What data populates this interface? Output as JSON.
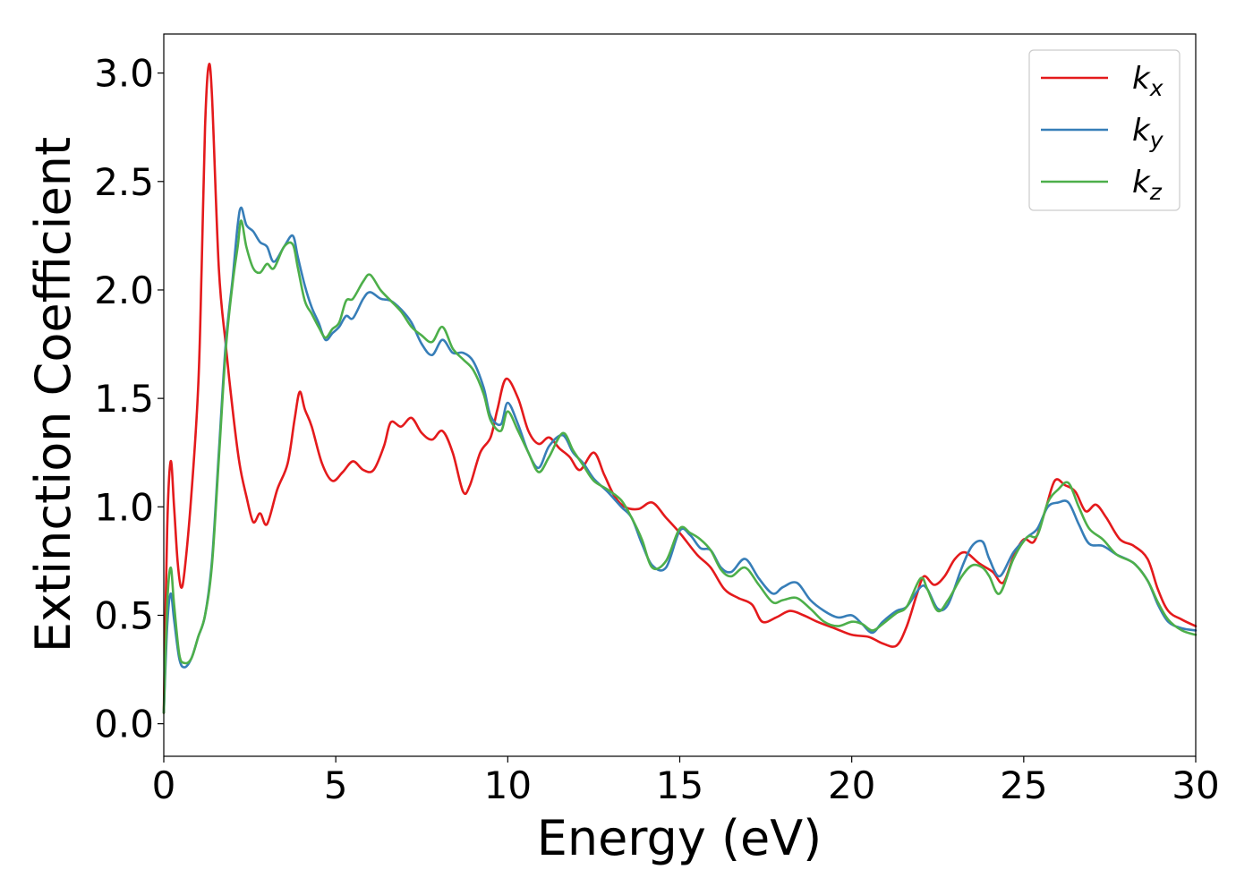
{
  "chart_data": {
    "type": "line",
    "xlabel": "Energy (eV)",
    "ylabel": "Extinction Coefficient",
    "xlim": [
      0,
      30
    ],
    "ylim": [
      -0.15,
      3.18
    ],
    "xticks": [
      "0",
      "5",
      "10",
      "15",
      "20",
      "25",
      "30"
    ],
    "yticks": [
      "0.0",
      "0.5",
      "1.0",
      "1.5",
      "2.0",
      "2.5",
      "3.0"
    ],
    "grid": false,
    "legend_position": "top-right",
    "series": [
      {
        "name": "k",
        "subscript": "x",
        "color": "#e41a1c",
        "points": [
          [
            0,
            0.05
          ],
          [
            0.1,
            0.9
          ],
          [
            0.2,
            1.21
          ],
          [
            0.3,
            1.0
          ],
          [
            0.4,
            0.75
          ],
          [
            0.5,
            0.63
          ],
          [
            0.6,
            0.7
          ],
          [
            0.8,
            1.05
          ],
          [
            1.0,
            1.55
          ],
          [
            1.1,
            2.1
          ],
          [
            1.2,
            2.75
          ],
          [
            1.3,
            3.03
          ],
          [
            1.4,
            2.9
          ],
          [
            1.6,
            2.1
          ],
          [
            1.8,
            1.75
          ],
          [
            2.0,
            1.45
          ],
          [
            2.2,
            1.2
          ],
          [
            2.4,
            1.05
          ],
          [
            2.6,
            0.93
          ],
          [
            2.8,
            0.97
          ],
          [
            3.0,
            0.92
          ],
          [
            3.3,
            1.08
          ],
          [
            3.6,
            1.2
          ],
          [
            3.8,
            1.4
          ],
          [
            3.95,
            1.53
          ],
          [
            4.1,
            1.45
          ],
          [
            4.3,
            1.37
          ],
          [
            4.6,
            1.2
          ],
          [
            4.9,
            1.12
          ],
          [
            5.2,
            1.16
          ],
          [
            5.5,
            1.21
          ],
          [
            5.8,
            1.17
          ],
          [
            6.1,
            1.17
          ],
          [
            6.4,
            1.28
          ],
          [
            6.6,
            1.39
          ],
          [
            6.9,
            1.37
          ],
          [
            7.2,
            1.41
          ],
          [
            7.5,
            1.34
          ],
          [
            7.8,
            1.31
          ],
          [
            8.1,
            1.35
          ],
          [
            8.4,
            1.25
          ],
          [
            8.7,
            1.07
          ],
          [
            8.9,
            1.1
          ],
          [
            9.2,
            1.25
          ],
          [
            9.5,
            1.32
          ],
          [
            9.7,
            1.45
          ],
          [
            9.95,
            1.59
          ],
          [
            10.3,
            1.5
          ],
          [
            10.6,
            1.35
          ],
          [
            10.9,
            1.29
          ],
          [
            11.2,
            1.32
          ],
          [
            11.5,
            1.27
          ],
          [
            11.8,
            1.23
          ],
          [
            12.1,
            1.17
          ],
          [
            12.5,
            1.25
          ],
          [
            12.8,
            1.15
          ],
          [
            13.1,
            1.05
          ],
          [
            13.4,
            1.0
          ],
          [
            13.8,
            0.99
          ],
          [
            14.2,
            1.02
          ],
          [
            14.6,
            0.95
          ],
          [
            15.0,
            0.88
          ],
          [
            15.5,
            0.78
          ],
          [
            15.9,
            0.72
          ],
          [
            16.3,
            0.62
          ],
          [
            16.7,
            0.58
          ],
          [
            17.1,
            0.55
          ],
          [
            17.4,
            0.47
          ],
          [
            17.8,
            0.49
          ],
          [
            18.2,
            0.52
          ],
          [
            18.6,
            0.5
          ],
          [
            19.0,
            0.47
          ],
          [
            19.5,
            0.44
          ],
          [
            20.0,
            0.41
          ],
          [
            20.5,
            0.4
          ],
          [
            20.9,
            0.37
          ],
          [
            21.3,
            0.36
          ],
          [
            21.6,
            0.45
          ],
          [
            21.9,
            0.6
          ],
          [
            22.1,
            0.68
          ],
          [
            22.4,
            0.64
          ],
          [
            22.7,
            0.68
          ],
          [
            23.0,
            0.76
          ],
          [
            23.3,
            0.79
          ],
          [
            23.7,
            0.74
          ],
          [
            24.1,
            0.7
          ],
          [
            24.4,
            0.65
          ],
          [
            24.7,
            0.77
          ],
          [
            25.0,
            0.85
          ],
          [
            25.3,
            0.84
          ],
          [
            25.6,
            0.97
          ],
          [
            25.9,
            1.12
          ],
          [
            26.2,
            1.1
          ],
          [
            26.5,
            1.07
          ],
          [
            26.8,
            0.98
          ],
          [
            27.1,
            1.01
          ],
          [
            27.4,
            0.95
          ],
          [
            27.8,
            0.85
          ],
          [
            28.2,
            0.82
          ],
          [
            28.6,
            0.76
          ],
          [
            28.9,
            0.62
          ],
          [
            29.2,
            0.52
          ],
          [
            29.6,
            0.48
          ],
          [
            30.0,
            0.45
          ]
        ]
      },
      {
        "name": "k",
        "subscript": "y",
        "color": "#377eb8",
        "points": [
          [
            0,
            0.05
          ],
          [
            0.1,
            0.45
          ],
          [
            0.2,
            0.6
          ],
          [
            0.3,
            0.48
          ],
          [
            0.45,
            0.3
          ],
          [
            0.6,
            0.26
          ],
          [
            0.8,
            0.3
          ],
          [
            1.0,
            0.4
          ],
          [
            1.2,
            0.5
          ],
          [
            1.4,
            0.75
          ],
          [
            1.6,
            1.25
          ],
          [
            1.8,
            1.75
          ],
          [
            2.0,
            2.05
          ],
          [
            2.15,
            2.3
          ],
          [
            2.25,
            2.38
          ],
          [
            2.4,
            2.3
          ],
          [
            2.6,
            2.27
          ],
          [
            2.8,
            2.22
          ],
          [
            3.0,
            2.2
          ],
          [
            3.2,
            2.13
          ],
          [
            3.5,
            2.2
          ],
          [
            3.75,
            2.25
          ],
          [
            3.9,
            2.15
          ],
          [
            4.1,
            2.02
          ],
          [
            4.3,
            1.92
          ],
          [
            4.5,
            1.85
          ],
          [
            4.7,
            1.77
          ],
          [
            4.9,
            1.8
          ],
          [
            5.1,
            1.83
          ],
          [
            5.3,
            1.88
          ],
          [
            5.5,
            1.87
          ],
          [
            5.8,
            1.96
          ],
          [
            6.0,
            1.99
          ],
          [
            6.3,
            1.96
          ],
          [
            6.6,
            1.95
          ],
          [
            6.9,
            1.91
          ],
          [
            7.2,
            1.85
          ],
          [
            7.5,
            1.75
          ],
          [
            7.8,
            1.7
          ],
          [
            8.1,
            1.77
          ],
          [
            8.4,
            1.71
          ],
          [
            8.7,
            1.71
          ],
          [
            9.0,
            1.67
          ],
          [
            9.3,
            1.55
          ],
          [
            9.5,
            1.42
          ],
          [
            9.8,
            1.38
          ],
          [
            10.0,
            1.48
          ],
          [
            10.3,
            1.38
          ],
          [
            10.6,
            1.25
          ],
          [
            10.9,
            1.18
          ],
          [
            11.2,
            1.28
          ],
          [
            11.6,
            1.33
          ],
          [
            11.9,
            1.25
          ],
          [
            12.2,
            1.2
          ],
          [
            12.5,
            1.13
          ],
          [
            12.9,
            1.07
          ],
          [
            13.3,
            1.0
          ],
          [
            13.6,
            0.95
          ],
          [
            13.9,
            0.83
          ],
          [
            14.2,
            0.73
          ],
          [
            14.6,
            0.72
          ],
          [
            15.0,
            0.89
          ],
          [
            15.3,
            0.87
          ],
          [
            15.6,
            0.81
          ],
          [
            15.9,
            0.8
          ],
          [
            16.2,
            0.72
          ],
          [
            16.5,
            0.7
          ],
          [
            16.9,
            0.76
          ],
          [
            17.3,
            0.67
          ],
          [
            17.7,
            0.6
          ],
          [
            18.0,
            0.63
          ],
          [
            18.4,
            0.65
          ],
          [
            18.8,
            0.57
          ],
          [
            19.2,
            0.52
          ],
          [
            19.6,
            0.49
          ],
          [
            20.0,
            0.5
          ],
          [
            20.3,
            0.46
          ],
          [
            20.6,
            0.42
          ],
          [
            20.9,
            0.47
          ],
          [
            21.3,
            0.52
          ],
          [
            21.6,
            0.54
          ],
          [
            22.0,
            0.63
          ],
          [
            22.2,
            0.62
          ],
          [
            22.5,
            0.53
          ],
          [
            22.8,
            0.55
          ],
          [
            23.2,
            0.72
          ],
          [
            23.5,
            0.82
          ],
          [
            23.8,
            0.84
          ],
          [
            24.0,
            0.76
          ],
          [
            24.3,
            0.68
          ],
          [
            24.7,
            0.79
          ],
          [
            25.1,
            0.86
          ],
          [
            25.4,
            0.9
          ],
          [
            25.7,
            1.0
          ],
          [
            26.0,
            1.02
          ],
          [
            26.3,
            1.02
          ],
          [
            26.6,
            0.92
          ],
          [
            26.9,
            0.83
          ],
          [
            27.3,
            0.82
          ],
          [
            27.7,
            0.78
          ],
          [
            28.2,
            0.74
          ],
          [
            28.6,
            0.66
          ],
          [
            28.9,
            0.55
          ],
          [
            29.2,
            0.47
          ],
          [
            29.6,
            0.44
          ],
          [
            30.0,
            0.43
          ]
        ]
      },
      {
        "name": "k",
        "subscript": "z",
        "color": "#4daf4a",
        "points": [
          [
            0,
            0.05
          ],
          [
            0.1,
            0.55
          ],
          [
            0.2,
            0.72
          ],
          [
            0.3,
            0.55
          ],
          [
            0.45,
            0.32
          ],
          [
            0.6,
            0.28
          ],
          [
            0.8,
            0.3
          ],
          [
            1.0,
            0.4
          ],
          [
            1.2,
            0.5
          ],
          [
            1.4,
            0.73
          ],
          [
            1.6,
            1.22
          ],
          [
            1.8,
            1.72
          ],
          [
            2.0,
            2.03
          ],
          [
            2.15,
            2.2
          ],
          [
            2.25,
            2.32
          ],
          [
            2.4,
            2.2
          ],
          [
            2.6,
            2.1
          ],
          [
            2.8,
            2.08
          ],
          [
            3.0,
            2.12
          ],
          [
            3.2,
            2.1
          ],
          [
            3.5,
            2.2
          ],
          [
            3.75,
            2.21
          ],
          [
            3.9,
            2.1
          ],
          [
            4.1,
            1.95
          ],
          [
            4.3,
            1.89
          ],
          [
            4.5,
            1.83
          ],
          [
            4.7,
            1.78
          ],
          [
            4.9,
            1.82
          ],
          [
            5.1,
            1.85
          ],
          [
            5.3,
            1.95
          ],
          [
            5.5,
            1.96
          ],
          [
            5.8,
            2.04
          ],
          [
            6.0,
            2.07
          ],
          [
            6.3,
            2.0
          ],
          [
            6.6,
            1.95
          ],
          [
            6.9,
            1.9
          ],
          [
            7.2,
            1.83
          ],
          [
            7.5,
            1.79
          ],
          [
            7.8,
            1.76
          ],
          [
            8.1,
            1.83
          ],
          [
            8.4,
            1.73
          ],
          [
            8.7,
            1.68
          ],
          [
            9.0,
            1.63
          ],
          [
            9.3,
            1.52
          ],
          [
            9.5,
            1.4
          ],
          [
            9.8,
            1.35
          ],
          [
            10.0,
            1.44
          ],
          [
            10.3,
            1.35
          ],
          [
            10.6,
            1.25
          ],
          [
            10.9,
            1.16
          ],
          [
            11.2,
            1.23
          ],
          [
            11.6,
            1.34
          ],
          [
            11.9,
            1.26
          ],
          [
            12.2,
            1.19
          ],
          [
            12.5,
            1.12
          ],
          [
            12.9,
            1.08
          ],
          [
            13.3,
            1.03
          ],
          [
            13.6,
            0.95
          ],
          [
            13.9,
            0.85
          ],
          [
            14.2,
            0.72
          ],
          [
            14.6,
            0.75
          ],
          [
            15.0,
            0.9
          ],
          [
            15.3,
            0.88
          ],
          [
            15.6,
            0.85
          ],
          [
            15.9,
            0.8
          ],
          [
            16.2,
            0.71
          ],
          [
            16.5,
            0.68
          ],
          [
            16.9,
            0.72
          ],
          [
            17.3,
            0.64
          ],
          [
            17.7,
            0.56
          ],
          [
            18.0,
            0.57
          ],
          [
            18.4,
            0.58
          ],
          [
            18.8,
            0.53
          ],
          [
            19.2,
            0.47
          ],
          [
            19.6,
            0.45
          ],
          [
            20.0,
            0.47
          ],
          [
            20.3,
            0.46
          ],
          [
            20.6,
            0.43
          ],
          [
            20.9,
            0.46
          ],
          [
            21.3,
            0.51
          ],
          [
            21.6,
            0.54
          ],
          [
            22.0,
            0.67
          ],
          [
            22.2,
            0.62
          ],
          [
            22.5,
            0.52
          ],
          [
            22.8,
            0.57
          ],
          [
            23.2,
            0.68
          ],
          [
            23.5,
            0.73
          ],
          [
            23.8,
            0.72
          ],
          [
            24.0,
            0.68
          ],
          [
            24.3,
            0.6
          ],
          [
            24.7,
            0.76
          ],
          [
            25.1,
            0.86
          ],
          [
            25.4,
            0.87
          ],
          [
            25.7,
            1.02
          ],
          [
            26.0,
            1.08
          ],
          [
            26.3,
            1.11
          ],
          [
            26.6,
            1.0
          ],
          [
            26.9,
            0.9
          ],
          [
            27.3,
            0.85
          ],
          [
            27.7,
            0.78
          ],
          [
            28.2,
            0.74
          ],
          [
            28.6,
            0.66
          ],
          [
            28.9,
            0.56
          ],
          [
            29.2,
            0.48
          ],
          [
            29.6,
            0.43
          ],
          [
            30.0,
            0.41
          ]
        ]
      }
    ]
  }
}
